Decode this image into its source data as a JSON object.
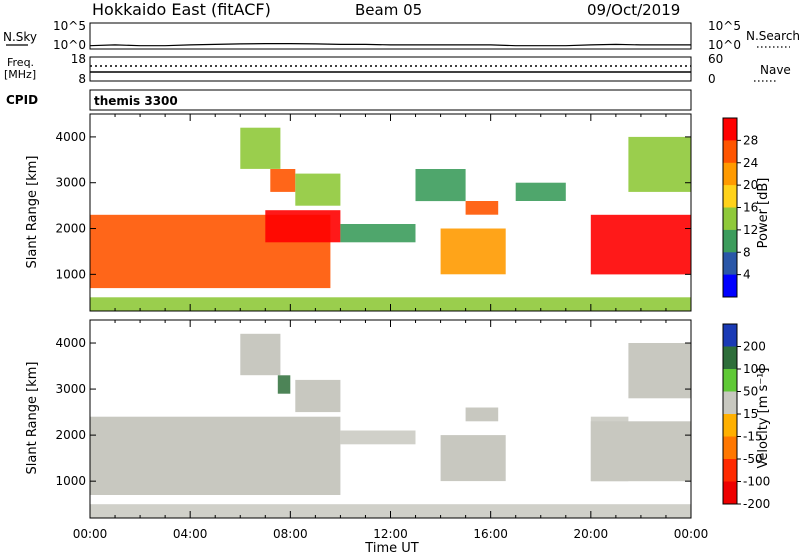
{
  "header": {
    "station": "Hokkaido East (fitACF)",
    "beam": "Beam 05",
    "date": "09/Oct/2019"
  },
  "nsky_panel": {
    "left_label": "N.Sky",
    "left_ticks": [
      "10^5",
      "10^0"
    ],
    "right_ticks": [
      "10^5",
      "10^0"
    ],
    "right_label": "N.Search",
    "right_legend_style": "dotted"
  },
  "freq_panel": {
    "left_label_line1": "Freq.",
    "left_label_line2": "[MHz]",
    "left_ticks": [
      "18",
      "8"
    ],
    "right_ticks": [
      "60",
      "0"
    ],
    "right_label": "Nave",
    "right_legend_style": "dotted"
  },
  "cpid_panel": {
    "label": "CPID",
    "program": "themis 3300"
  },
  "power_panel": {
    "ylabel": "Slant Range [km]",
    "yticks": [
      "4000",
      "3000",
      "2000",
      "1000"
    ],
    "colorbar_label": "Power [dB]",
    "colorbar_ticks": [
      "28",
      "24",
      "20",
      "16",
      "12",
      "8",
      "4"
    ],
    "colorbar_colors": [
      "#ff0000",
      "#ff5500",
      "#ff9a00",
      "#ffd21a",
      "#8fc93a",
      "#3c9c5c",
      "#2a57a8",
      "#0000ff"
    ]
  },
  "velocity_panel": {
    "ylabel": "Slant Range [km]",
    "yticks": [
      "4000",
      "3000",
      "2000",
      "1000"
    ],
    "colorbar_label": "Velocity [m s⁻¹]",
    "colorbar_ticks": [
      "200",
      "100",
      "50",
      "15",
      "-15",
      "-50",
      "-100",
      "-200"
    ],
    "colorbar_colors": [
      "#1a3ab5",
      "#2e6e3a",
      "#5fc936",
      "#c8c8c0",
      "#ffb000",
      "#ff7700",
      "#ff2a00",
      "#ee0000"
    ],
    "ground_scatter_color": "#c8c8c0"
  },
  "x_axis": {
    "label": "Time UT",
    "ticks": [
      "00:00",
      "04:00",
      "08:00",
      "12:00",
      "16:00",
      "20:00",
      "00:00"
    ]
  },
  "chart_data": [
    {
      "type": "line",
      "name": "N.Sky",
      "xlabel": "",
      "ylabel": "N.Sky",
      "x_range_hours": [
        0,
        24
      ],
      "y_scale": "log",
      "ylim": [
        1,
        100000
      ],
      "x": [
        0,
        1,
        2,
        3,
        4,
        5,
        6,
        7,
        8,
        9,
        10,
        11,
        12,
        13,
        14,
        15,
        16,
        17,
        18,
        19,
        20,
        21,
        22,
        23,
        24
      ],
      "values": [
        2,
        3,
        2,
        2,
        3,
        4,
        5,
        6,
        6,
        5,
        4,
        4,
        3,
        3,
        3,
        3,
        3,
        2,
        2,
        2,
        3,
        4,
        3,
        3,
        3
      ]
    },
    {
      "type": "line",
      "name": "Freq.",
      "ylabel": "[MHz]",
      "ylim": [
        8,
        18
      ],
      "x_range_hours": [
        0,
        24
      ],
      "x": [
        0,
        24
      ],
      "values": [
        10.5,
        10.5
      ]
    },
    {
      "type": "heatmap",
      "name": "Power",
      "ylabel": "Slant Range [km]",
      "ylim": [
        200,
        4500
      ],
      "x_range_hours": [
        0,
        24
      ],
      "colorbar_range_db": [
        0,
        30
      ],
      "echo_regions": [
        {
          "t_start": 0.0,
          "t_end": 9.6,
          "range_low": 700,
          "range_high": 2300,
          "power_db": 26
        },
        {
          "t_start": 7.0,
          "t_end": 10.0,
          "range_low": 1700,
          "range_high": 2400,
          "power_db": 28
        },
        {
          "t_start": 6.0,
          "t_end": 7.6,
          "range_low": 3300,
          "range_high": 4200,
          "power_db": 12
        },
        {
          "t_start": 7.2,
          "t_end": 8.2,
          "range_low": 2800,
          "range_high": 3300,
          "power_db": 24
        },
        {
          "t_start": 8.2,
          "t_end": 10.0,
          "range_low": 2500,
          "range_high": 3200,
          "power_db": 14
        },
        {
          "t_start": 10.0,
          "t_end": 13.0,
          "range_low": 1700,
          "range_high": 2100,
          "power_db": 8
        },
        {
          "t_start": 13.0,
          "t_end": 15.0,
          "range_low": 2600,
          "range_high": 3300,
          "power_db": 8
        },
        {
          "t_start": 14.0,
          "t_end": 16.6,
          "range_low": 1000,
          "range_high": 2000,
          "power_db": 22
        },
        {
          "t_start": 15.0,
          "t_end": 16.3,
          "range_low": 2300,
          "range_high": 2600,
          "power_db": 24
        },
        {
          "t_start": 17.0,
          "t_end": 19.0,
          "range_low": 2600,
          "range_high": 3000,
          "power_db": 8
        },
        {
          "t_start": 20.0,
          "t_end": 24.0,
          "range_low": 1000,
          "range_high": 2300,
          "power_db": 27
        },
        {
          "t_start": 21.5,
          "t_end": 24.0,
          "range_low": 2800,
          "range_high": 4000,
          "power_db": 14
        },
        {
          "t_start": 0.0,
          "t_end": 24.0,
          "range_low": 200,
          "range_high": 500,
          "power_db": 12
        }
      ]
    },
    {
      "type": "heatmap",
      "name": "Velocity",
      "ylabel": "Slant Range [km]",
      "ylim": [
        200,
        4500
      ],
      "x_range_hours": [
        0,
        24
      ],
      "colorbar_range": [
        -200,
        200
      ],
      "echo_regions": [
        {
          "t_start": 0.0,
          "t_end": 10.0,
          "range_low": 700,
          "range_high": 2400,
          "velocity": 0,
          "ground_scatter": true
        },
        {
          "t_start": 6.0,
          "t_end": 7.6,
          "range_low": 3300,
          "range_high": 4200,
          "velocity": 0,
          "ground_scatter": true
        },
        {
          "t_start": 7.5,
          "t_end": 8.0,
          "range_low": 2900,
          "range_high": 3300,
          "velocity": 100
        },
        {
          "t_start": 8.2,
          "t_end": 10.0,
          "range_low": 2500,
          "range_high": 3200,
          "velocity": 0,
          "ground_scatter": true
        },
        {
          "t_start": 10.0,
          "t_end": 13.0,
          "range_low": 1800,
          "range_high": 2100,
          "velocity": 40
        },
        {
          "t_start": 14.0,
          "t_end": 16.6,
          "range_low": 1000,
          "range_high": 2000,
          "velocity": 0,
          "ground_scatter": true
        },
        {
          "t_start": 15.0,
          "t_end": 16.3,
          "range_low": 2300,
          "range_high": 2600,
          "velocity": 0,
          "ground_scatter": true
        },
        {
          "t_start": 20.0,
          "t_end": 24.0,
          "range_low": 1000,
          "range_high": 2300,
          "velocity": 0,
          "ground_scatter": true
        },
        {
          "t_start": 20.0,
          "t_end": 21.5,
          "range_low": 1000,
          "range_high": 2400,
          "velocity": 40
        },
        {
          "t_start": 21.5,
          "t_end": 24.0,
          "range_low": 2800,
          "range_high": 4000,
          "velocity": 0,
          "ground_scatter": true
        },
        {
          "t_start": 0.0,
          "t_end": 24.0,
          "range_low": 200,
          "range_high": 500,
          "velocity": 30
        }
      ]
    }
  ]
}
